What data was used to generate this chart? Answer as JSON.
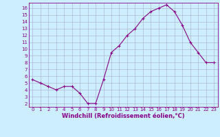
{
  "x": [
    0,
    1,
    2,
    3,
    4,
    5,
    6,
    7,
    8,
    9,
    10,
    11,
    12,
    13,
    14,
    15,
    16,
    17,
    18,
    19,
    20,
    21,
    22,
    23
  ],
  "y": [
    5.5,
    5.0,
    4.5,
    4.0,
    4.5,
    4.5,
    3.5,
    2.0,
    2.0,
    5.5,
    9.5,
    10.5,
    12.0,
    13.0,
    14.5,
    15.5,
    16.0,
    16.5,
    15.5,
    13.5,
    11.0,
    9.5,
    8.0,
    8.0
  ],
  "xlim": [
    -0.5,
    23.5
  ],
  "ylim": [
    1.5,
    16.8
  ],
  "yticks": [
    2,
    3,
    4,
    5,
    6,
    7,
    8,
    9,
    10,
    11,
    12,
    13,
    14,
    15,
    16
  ],
  "xticks": [
    0,
    1,
    2,
    3,
    4,
    5,
    6,
    7,
    8,
    9,
    10,
    11,
    12,
    13,
    14,
    15,
    16,
    17,
    18,
    19,
    20,
    21,
    22,
    23
  ],
  "line_color": "#880088",
  "marker": "+",
  "bg_color": "#cceeff",
  "grid_color": "#aaaacc",
  "xlabel": "Windchill (Refroidissement éolien,°C)",
  "tick_fontsize": 5.0,
  "label_fontsize": 6.0
}
